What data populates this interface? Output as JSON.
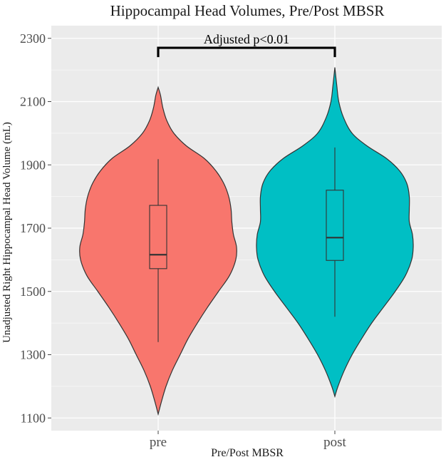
{
  "chart_data": {
    "type": "violin",
    "title": "Hippocampal Head Volumes, Pre/Post MBSR",
    "xlabel": "Pre/Post MBSR",
    "ylabel": "Unadjusted Right Hippocampal Head Volume (mL)",
    "categories": [
      "pre",
      "post"
    ],
    "ylim": [
      1060,
      2340
    ],
    "yticks": [
      1100,
      1300,
      1500,
      1700,
      1900,
      2100,
      2300
    ],
    "grid": true,
    "series": [
      {
        "category": "pre",
        "color": "#F8766D",
        "boxplot": {
          "whisker_low": 1340,
          "q1": 1572,
          "median": 1616,
          "q3": 1772,
          "whisker_high": 1918
        },
        "density": [
          [
            1112,
            0.0
          ],
          [
            1150,
            0.04
          ],
          [
            1200,
            0.1
          ],
          [
            1250,
            0.18
          ],
          [
            1300,
            0.28
          ],
          [
            1350,
            0.38
          ],
          [
            1400,
            0.5
          ],
          [
            1450,
            0.63
          ],
          [
            1500,
            0.77
          ],
          [
            1550,
            0.91
          ],
          [
            1600,
            0.99
          ],
          [
            1640,
            1.0
          ],
          [
            1680,
            0.96
          ],
          [
            1720,
            0.94
          ],
          [
            1760,
            0.93
          ],
          [
            1800,
            0.9
          ],
          [
            1840,
            0.84
          ],
          [
            1880,
            0.74
          ],
          [
            1920,
            0.59
          ],
          [
            1960,
            0.36
          ],
          [
            2000,
            0.2
          ],
          [
            2040,
            0.11
          ],
          [
            2080,
            0.06
          ],
          [
            2120,
            0.03
          ],
          [
            2145,
            0.0
          ]
        ]
      },
      {
        "category": "post",
        "color": "#00BFC4",
        "boxplot": {
          "whisker_low": 1420,
          "q1": 1598,
          "median": 1670,
          "q3": 1820,
          "whisker_high": 1955
        },
        "density": [
          [
            1168,
            0.0
          ],
          [
            1200,
            0.04
          ],
          [
            1250,
            0.12
          ],
          [
            1300,
            0.22
          ],
          [
            1350,
            0.34
          ],
          [
            1400,
            0.47
          ],
          [
            1450,
            0.62
          ],
          [
            1500,
            0.77
          ],
          [
            1550,
            0.9
          ],
          [
            1600,
            0.98
          ],
          [
            1640,
            1.0
          ],
          [
            1680,
            0.99
          ],
          [
            1720,
            0.95
          ],
          [
            1760,
            0.95
          ],
          [
            1800,
            0.95
          ],
          [
            1840,
            0.92
          ],
          [
            1880,
            0.83
          ],
          [
            1920,
            0.66
          ],
          [
            1960,
            0.41
          ],
          [
            2000,
            0.22
          ],
          [
            2050,
            0.11
          ],
          [
            2100,
            0.05
          ],
          [
            2150,
            0.025
          ],
          [
            2208,
            0.0
          ]
        ]
      }
    ],
    "annotations": [
      {
        "text": "Adjusted p<0.01",
        "type": "bracket",
        "from": "pre",
        "to": "post",
        "y": 2270
      }
    ]
  }
}
